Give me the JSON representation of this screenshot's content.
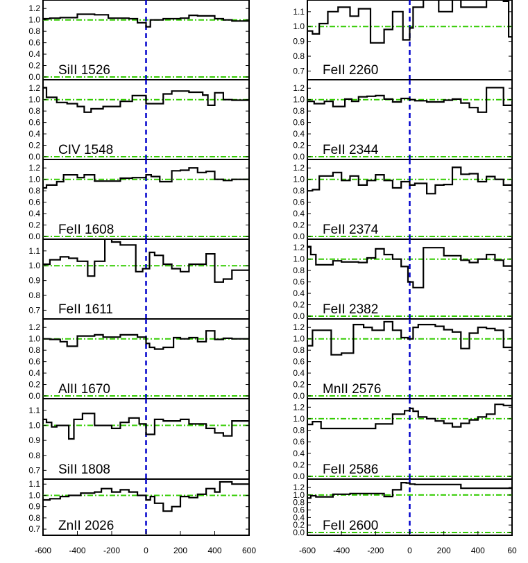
{
  "colors": {
    "frame": "#000000",
    "spectrum": "#000000",
    "continuum": "#33cc00",
    "zero_velocity": "#0000cc"
  },
  "chart_data": [
    {
      "type": "line",
      "column": "left",
      "label": "SiII 1526",
      "yticks": [
        "0.0",
        "0.2",
        "0.4",
        "0.6",
        "0.8",
        "1.0",
        "1.2"
      ],
      "ylim": [
        0,
        1.3
      ],
      "x": [
        -600,
        -560,
        -500,
        -400,
        -300,
        -220,
        -100,
        -50,
        0,
        25,
        100,
        200,
        250,
        300,
        400,
        450,
        500
      ],
      "values": [
        1.02,
        1.03,
        1.04,
        1.1,
        1.09,
        1.03,
        1.02,
        0.95,
        0.88,
        1.0,
        1.02,
        1.03,
        1.08,
        1.07,
        1.02,
        1.0,
        0.98
      ]
    },
    {
      "type": "line",
      "column": "left",
      "label": "CIV 1548",
      "yticks": [
        "0.0",
        "0.2",
        "0.4",
        "0.6",
        "0.8",
        "1.0",
        "1.2"
      ],
      "ylim": [
        0,
        1.3
      ],
      "x": [
        -600,
        -580,
        -520,
        -460,
        -400,
        -360,
        -320,
        -250,
        -150,
        -80,
        -30,
        0,
        30,
        100,
        150,
        250,
        330,
        360,
        400,
        450,
        500
      ],
      "values": [
        1.21,
        1.04,
        0.95,
        0.93,
        0.88,
        0.78,
        0.84,
        0.88,
        0.97,
        1.07,
        1.07,
        0.93,
        0.93,
        1.1,
        1.15,
        1.13,
        1.08,
        0.9,
        1.12,
        1.0,
        0.99
      ]
    },
    {
      "type": "line",
      "column": "left",
      "label": "FeII 1608",
      "yticks": [
        "0.0",
        "0.2",
        "0.4",
        "0.6",
        "0.8",
        "1.0",
        "1.2"
      ],
      "ylim": [
        0,
        1.3
      ],
      "x": [
        -600,
        -580,
        -520,
        -480,
        -400,
        -360,
        -300,
        -250,
        -150,
        -80,
        -30,
        0,
        30,
        80,
        150,
        200,
        250,
        300,
        350,
        400,
        450,
        500
      ],
      "values": [
        0.85,
        0.9,
        0.96,
        1.08,
        1.03,
        1.08,
        0.97,
        0.97,
        1.02,
        1.03,
        1.03,
        1.08,
        1.05,
        0.96,
        1.15,
        1.16,
        1.2,
        1.12,
        1.14,
        1.0,
        0.98,
        1.0
      ]
    },
    {
      "type": "line",
      "column": "left",
      "label": "FeII 1611",
      "yticks": [
        "0.7",
        "0.8",
        "0.9",
        "1.0",
        "1.1"
      ],
      "ylim": [
        0.66,
        1.16
      ],
      "x": [
        -600,
        -560,
        -500,
        -450,
        -400,
        -340,
        -300,
        -270,
        -240,
        -200,
        -150,
        -60,
        -20,
        20,
        50,
        100,
        150,
        200,
        250,
        300,
        350,
        400,
        450,
        500
      ],
      "values": [
        1.01,
        1.04,
        1.06,
        1.05,
        1.03,
        0.93,
        1.03,
        1.03,
        1.18,
        1.16,
        1.14,
        0.96,
        0.98,
        1.09,
        1.07,
        1.01,
        0.98,
        0.96,
        1.01,
        1.01,
        1.08,
        0.89,
        0.91,
        0.97
      ]
    },
    {
      "type": "line",
      "column": "left",
      "label": "AlII 1670",
      "yticks": [
        "0.0",
        "0.2",
        "0.4",
        "0.6",
        "0.8",
        "1.0",
        "1.2"
      ],
      "ylim": [
        0,
        1.3
      ],
      "x": [
        -600,
        -560,
        -500,
        -460,
        -400,
        -300,
        -250,
        -150,
        -50,
        0,
        20,
        50,
        100,
        160,
        200,
        250,
        300,
        350,
        400,
        450,
        500
      ],
      "values": [
        1.0,
        0.99,
        0.95,
        0.87,
        1.05,
        1.07,
        1.03,
        1.07,
        1.03,
        0.92,
        0.85,
        0.82,
        0.85,
        1.02,
        1.0,
        1.02,
        0.95,
        1.14,
        0.99,
        1.01,
        1.0
      ]
    },
    {
      "type": "line",
      "column": "left",
      "label": "SiII 1808",
      "yticks": [
        "0.7",
        "0.8",
        "0.9",
        "1.0",
        "1.1"
      ],
      "ylim": [
        0.66,
        1.16
      ],
      "x": [
        -600,
        -580,
        -550,
        -520,
        -450,
        -420,
        -370,
        -300,
        -250,
        -200,
        -150,
        -100,
        -40,
        0,
        20,
        50,
        100,
        150,
        200,
        250,
        300,
        350,
        400,
        450,
        500
      ],
      "values": [
        1.04,
        1.02,
        0.99,
        1.0,
        0.91,
        1.04,
        1.08,
        1.0,
        1.0,
        0.98,
        1.02,
        1.05,
        1.01,
        0.94,
        0.94,
        1.04,
        1.03,
        1.03,
        1.04,
        1.01,
        1.01,
        0.98,
        0.95,
        0.93,
        1.03
      ]
    },
    {
      "type": "line",
      "column": "left",
      "label": "ZnII 2026",
      "yticks": [
        "0.7",
        "0.8",
        "0.9",
        "1.0",
        "1.1"
      ],
      "ylim": [
        0.67,
        1.12
      ],
      "x": [
        -600,
        -560,
        -500,
        -450,
        -380,
        -300,
        -260,
        -200,
        -150,
        -100,
        -50,
        0,
        25,
        50,
        100,
        150,
        200,
        250,
        300,
        350,
        400,
        430,
        480,
        500
      ],
      "values": [
        0.96,
        0.97,
        0.99,
        1.0,
        1.02,
        1.03,
        1.06,
        1.03,
        1.05,
        1.03,
        1.0,
        0.96,
        0.99,
        0.93,
        0.86,
        0.9,
        0.99,
        0.98,
        1.01,
        1.06,
        1.03,
        1.12,
        1.12,
        1.1
      ]
    },
    {
      "type": "line",
      "column": "right",
      "label": "FeII 2260",
      "yticks": [
        "0.7",
        "0.8",
        "0.9",
        "1.0",
        "1.1"
      ],
      "ylim": [
        0.66,
        1.16
      ],
      "x": [
        -600,
        -570,
        -530,
        -480,
        -420,
        -350,
        -300,
        -230,
        -150,
        -100,
        -70,
        -40,
        0,
        20,
        80,
        110,
        170,
        250,
        300,
        400,
        450,
        500,
        550,
        580
      ],
      "values": [
        0.97,
        0.95,
        1.02,
        1.1,
        1.13,
        1.07,
        1.12,
        0.89,
        0.98,
        1.1,
        1.1,
        0.91,
        0.99,
        1.13,
        1.2,
        1.2,
        1.1,
        1.2,
        1.13,
        1.13,
        1.2,
        1.18,
        1.17,
        0.93
      ]
    },
    {
      "type": "line",
      "column": "right",
      "label": "FeII 2344",
      "yticks": [
        "0.0",
        "0.2",
        "0.4",
        "0.6",
        "0.8",
        "1.0",
        "1.2"
      ],
      "ylim": [
        0,
        1.3
      ],
      "x": [
        -600,
        -560,
        -500,
        -450,
        -380,
        -340,
        -300,
        -250,
        -200,
        -150,
        -100,
        -50,
        0,
        30,
        100,
        200,
        250,
        300,
        350,
        400,
        450,
        500,
        550
      ],
      "values": [
        0.97,
        0.93,
        0.97,
        0.88,
        1.01,
        0.97,
        1.05,
        1.06,
        1.07,
        1.01,
        0.96,
        1.02,
        1.0,
        0.98,
        0.96,
        0.99,
        1.01,
        0.94,
        0.86,
        0.78,
        1.21,
        1.21,
        0.9
      ]
    },
    {
      "type": "line",
      "column": "right",
      "label": "FeII 2374",
      "yticks": [
        "0.0",
        "0.2",
        "0.4",
        "0.6",
        "0.8",
        "1.0",
        "1.2"
      ],
      "ylim": [
        0,
        1.3
      ],
      "x": [
        -600,
        -570,
        -530,
        -450,
        -400,
        -350,
        -300,
        -250,
        -200,
        -150,
        -100,
        -50,
        0,
        30,
        100,
        150,
        200,
        250,
        300,
        350,
        400,
        450,
        500,
        550
      ],
      "values": [
        0.8,
        0.82,
        1.06,
        1.12,
        0.98,
        1.06,
        0.9,
        0.98,
        1.08,
        0.98,
        0.85,
        0.96,
        0.9,
        0.93,
        0.75,
        0.9,
        0.91,
        1.21,
        1.09,
        1.1,
        0.96,
        1.05,
        1.0,
        0.9
      ]
    },
    {
      "type": "line",
      "column": "right",
      "label": "FeII 2382",
      "yticks": [
        "0.0",
        "0.2",
        "0.4",
        "0.6",
        "0.8",
        "1.0",
        "1.2"
      ],
      "ylim": [
        0,
        1.3
      ],
      "x": [
        -600,
        -580,
        -550,
        -500,
        -450,
        -400,
        -350,
        -300,
        -250,
        -200,
        -150,
        -100,
        -50,
        -10,
        20,
        80,
        150,
        200,
        250,
        300,
        350,
        400,
        450,
        500,
        550
      ],
      "values": [
        1.22,
        1.08,
        0.9,
        0.9,
        0.97,
        0.95,
        0.95,
        0.94,
        1.02,
        1.18,
        1.08,
        1.0,
        0.87,
        0.6,
        0.5,
        1.2,
        1.2,
        1.06,
        1.06,
        0.98,
        0.94,
        1.0,
        1.08,
        0.98,
        0.88
      ]
    },
    {
      "type": "line",
      "column": "right",
      "label": "MnII 2576",
      "yticks": [
        "0.0",
        "0.2",
        "0.4",
        "0.6",
        "0.8",
        "1.0",
        "1.2"
      ],
      "ylim": [
        0,
        1.3
      ],
      "x": [
        -600,
        -570,
        -530,
        -460,
        -400,
        -330,
        -270,
        -220,
        -150,
        -100,
        -50,
        -10,
        20,
        50,
        100,
        150,
        200,
        250,
        300,
        350,
        400,
        450,
        500,
        550
      ],
      "values": [
        0.88,
        1.15,
        1.15,
        0.72,
        0.75,
        1.25,
        1.2,
        1.15,
        1.3,
        1.15,
        1.02,
        1.0,
        1.2,
        1.25,
        1.25,
        1.22,
        1.16,
        1.12,
        0.83,
        1.1,
        1.2,
        1.18,
        1.15,
        0.85
      ]
    },
    {
      "type": "line",
      "column": "right",
      "label": "FeII 2586",
      "yticks": [
        "0.0",
        "0.2",
        "0.4",
        "0.6",
        "0.8",
        "1.0",
        "1.2"
      ],
      "ylim": [
        0,
        1.3
      ],
      "x": [
        -600,
        -570,
        -520,
        -200,
        -100,
        -30,
        0,
        20,
        50,
        100,
        150,
        200,
        250,
        300,
        350,
        400,
        450,
        500,
        550
      ],
      "values": [
        0.9,
        0.95,
        0.83,
        0.91,
        1.08,
        1.14,
        1.18,
        1.13,
        1.03,
        1.0,
        0.96,
        0.92,
        0.86,
        0.92,
        0.98,
        1.03,
        1.08,
        1.25,
        1.23
      ]
    },
    {
      "type": "line",
      "column": "right",
      "label": "FeII 2600",
      "yticks": [
        "0.0",
        "0.2",
        "0.4",
        "0.6",
        "0.8",
        "1.0",
        "1.2"
      ],
      "ylim": [
        0,
        1.35
      ],
      "x": [
        -600,
        -580,
        -550,
        -450,
        -350,
        -150,
        -100,
        -50,
        -20,
        0,
        30,
        300
      ],
      "values": [
        0.92,
        0.98,
        0.95,
        1.02,
        1.04,
        0.96,
        1.14,
        1.33,
        1.32,
        1.29,
        1.28,
        1.18
      ]
    }
  ],
  "x_axis": {
    "ticks": [
      "-600",
      "-400",
      "-200",
      "0",
      "200",
      "400",
      "600"
    ],
    "right_last_tick": "60"
  }
}
